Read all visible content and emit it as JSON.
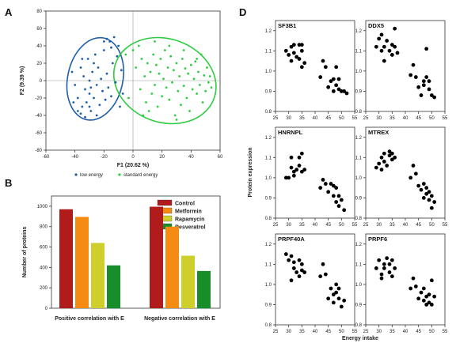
{
  "panels": {
    "a": "A",
    "b": "B",
    "d": "D"
  },
  "chart_data": [
    {
      "id": "A",
      "type": "scatter",
      "title": "",
      "xlabel": "F1 (20.62 %)",
      "ylabel": "F2 (9.39 %)",
      "xlim": [
        -60,
        60
      ],
      "ylim": [
        -80,
        80
      ],
      "xticks": [
        -60,
        -40,
        -20,
        0,
        20,
        40,
        60
      ],
      "yticks": [
        -80,
        -60,
        -40,
        -20,
        0,
        20,
        40,
        60,
        80
      ],
      "legend_position": "bottom",
      "series": [
        {
          "name": "low energy",
          "color": "#1f5fa8",
          "points": [
            [
              -42,
              10
            ],
            [
              -40,
              -5
            ],
            [
              -38,
              -20
            ],
            [
              -36,
              15
            ],
            [
              -35,
              -30
            ],
            [
              -34,
              5
            ],
            [
              -33,
              -10
            ],
            [
              -32,
              -25
            ],
            [
              -31,
              25
            ],
            [
              -30,
              -15
            ],
            [
              -30,
              0
            ],
            [
              -29,
              -35
            ],
            [
              -28,
              10
            ],
            [
              -27,
              -20
            ],
            [
              -26,
              30
            ],
            [
              -25,
              -5
            ],
            [
              -25,
              -40
            ],
            [
              -24,
              15
            ],
            [
              -23,
              -28
            ],
            [
              -22,
              2
            ],
            [
              -21,
              -12
            ],
            [
              -20,
              35
            ],
            [
              -19,
              -22
            ],
            [
              -18,
              8
            ],
            [
              -17,
              -8
            ],
            [
              -16,
              45
            ],
            [
              -15,
              -18
            ],
            [
              -14,
              20
            ],
            [
              -13,
              50
            ],
            [
              -12,
              -2
            ],
            [
              -11,
              28
            ],
            [
              -10,
              40
            ],
            [
              -9,
              -30
            ],
            [
              -8,
              12
            ],
            [
              -7,
              -15
            ],
            [
              -38,
              -35
            ],
            [
              -36,
              -38
            ],
            [
              -33,
              -42
            ],
            [
              -30,
              -30
            ],
            [
              -41,
              -25
            ],
            [
              -20,
              45
            ],
            [
              -18,
              48
            ],
            [
              -15,
              38
            ],
            [
              -27,
              20
            ],
            [
              -35,
              25
            ],
            [
              -29,
              -8
            ]
          ]
        },
        {
          "name": "standard energy",
          "color": "#2ecc40",
          "points": [
            [
              -5,
              30
            ],
            [
              0,
              35
            ],
            [
              2,
              15
            ],
            [
              4,
              40
            ],
            [
              5,
              -10
            ],
            [
              6,
              25
            ],
            [
              8,
              5
            ],
            [
              9,
              -25
            ],
            [
              10,
              20
            ],
            [
              11,
              -35
            ],
            [
              12,
              10
            ],
            [
              13,
              -15
            ],
            [
              14,
              30
            ],
            [
              15,
              -5
            ],
            [
              16,
              18
            ],
            [
              17,
              -30
            ],
            [
              18,
              8
            ],
            [
              19,
              25
            ],
            [
              20,
              -18
            ],
            [
              21,
              2
            ],
            [
              22,
              35
            ],
            [
              23,
              -8
            ],
            [
              24,
              15
            ],
            [
              25,
              -22
            ],
            [
              26,
              28
            ],
            [
              27,
              -2
            ],
            [
              28,
              12
            ],
            [
              29,
              -40
            ],
            [
              30,
              20
            ],
            [
              31,
              -12
            ],
            [
              32,
              5
            ],
            [
              33,
              -28
            ],
            [
              34,
              25
            ],
            [
              35,
              -6
            ],
            [
              36,
              14
            ],
            [
              37,
              -20
            ],
            [
              38,
              8
            ],
            [
              39,
              -35
            ],
            [
              40,
              18
            ],
            [
              41,
              -10
            ],
            [
              42,
              2
            ],
            [
              43,
              22
            ],
            [
              44,
              -15
            ],
            [
              45,
              10
            ],
            [
              46,
              -5
            ],
            [
              47,
              30
            ],
            [
              48,
              -25
            ],
            [
              49,
              6
            ],
            [
              50,
              -12
            ],
            [
              51,
              15
            ],
            [
              52,
              -2
            ],
            [
              53,
              5
            ],
            [
              54,
              -8
            ],
            [
              25,
              40
            ],
            [
              30,
              -45
            ],
            [
              15,
              45
            ],
            [
              -3,
              -20
            ],
            [
              7,
              -40
            ],
            [
              35,
              35
            ],
            [
              44,
              25
            ]
          ]
        }
      ]
    },
    {
      "id": "B",
      "type": "bar",
      "xlabel": "",
      "ylabel": "Number of proteins",
      "ylim": [
        0,
        1100
      ],
      "yticks": [
        0,
        200,
        400,
        600,
        800,
        1000
      ],
      "categories": [
        "Positive correlation with E",
        "Negative correlation with E"
      ],
      "legend_position": "top-right",
      "series": [
        {
          "name": "Control",
          "color": "#b01c1c",
          "values": [
            970,
            995
          ]
        },
        {
          "name": "Metformin",
          "color": "#f58b12",
          "values": [
            895,
            800
          ]
        },
        {
          "name": "Rapamycin",
          "color": "#cfcf2c",
          "values": [
            640,
            515
          ]
        },
        {
          "name": "Resveratrol",
          "color": "#178e2a",
          "values": [
            420,
            365
          ]
        }
      ]
    },
    {
      "id": "D",
      "type": "scatter",
      "xlabel": "Energy intake",
      "ylabel": "Protein expression",
      "xlim": [
        25,
        55
      ],
      "ylim": [
        0.8,
        1.25
      ],
      "xticks": [
        25,
        30,
        35,
        40,
        45,
        50,
        55
      ],
      "yticks": [
        0.8,
        0.9,
        1.0,
        1.1,
        1.2
      ],
      "subplots": [
        {
          "name": "SF3B1",
          "points": [
            [
              29,
              1.1
            ],
            [
              30,
              1.08
            ],
            [
              31,
              1.12
            ],
            [
              31,
              1.05
            ],
            [
              32,
              1.09
            ],
            [
              32,
              1.13
            ],
            [
              33,
              1.07
            ],
            [
              34,
              1.13
            ],
            [
              34,
              1.06
            ],
            [
              35,
              1.1
            ],
            [
              35,
              1.13
            ],
            [
              35,
              1.02
            ],
            [
              36,
              1.04
            ],
            [
              42,
              0.97
            ],
            [
              43,
              1.05
            ],
            [
              44,
              1.02
            ],
            [
              45,
              0.92
            ],
            [
              46,
              0.95
            ],
            [
              47,
              0.96
            ],
            [
              47,
              0.9
            ],
            [
              48,
              0.93
            ],
            [
              48,
              1.02
            ],
            [
              49,
              0.91
            ],
            [
              49,
              0.96
            ],
            [
              50,
              0.9
            ],
            [
              51,
              0.9
            ],
            [
              52,
              0.89
            ]
          ]
        },
        {
          "name": "DDX5",
          "points": [
            [
              29,
              1.12
            ],
            [
              30,
              1.16
            ],
            [
              31,
              1.1
            ],
            [
              31,
              1.18
            ],
            [
              32,
              1.12
            ],
            [
              32,
              1.05
            ],
            [
              33,
              1.15
            ],
            [
              34,
              1.1
            ],
            [
              35,
              1.13
            ],
            [
              35,
              1.08
            ],
            [
              36,
              1.21
            ],
            [
              36,
              1.12
            ],
            [
              37,
              1.09
            ],
            [
              42,
              0.98
            ],
            [
              43,
              1.03
            ],
            [
              44,
              0.97
            ],
            [
              45,
              0.92
            ],
            [
              46,
              0.88
            ],
            [
              47,
              0.95
            ],
            [
              47,
              0.93
            ],
            [
              48,
              1.11
            ],
            [
              48,
              0.97
            ],
            [
              49,
              0.91
            ],
            [
              49,
              0.95
            ],
            [
              50,
              0.88
            ],
            [
              51,
              0.87
            ]
          ]
        },
        {
          "name": "HNRNPL",
          "points": [
            [
              29,
              1.0
            ],
            [
              30,
              1.0
            ],
            [
              31,
              1.05
            ],
            [
              31,
              1.1
            ],
            [
              32,
              1.03
            ],
            [
              32,
              1.01
            ],
            [
              33,
              1.04
            ],
            [
              34,
              1.1
            ],
            [
              34,
              1.06
            ],
            [
              35,
              1.12
            ],
            [
              35,
              1.03
            ],
            [
              36,
              1.04
            ],
            [
              42,
              0.95
            ],
            [
              43,
              0.99
            ],
            [
              44,
              0.97
            ],
            [
              45,
              0.93
            ],
            [
              46,
              0.97
            ],
            [
              47,
              0.91
            ],
            [
              47,
              0.96
            ],
            [
              48,
              0.88
            ],
            [
              48,
              0.95
            ],
            [
              49,
              0.86
            ],
            [
              49,
              0.91
            ],
            [
              50,
              0.89
            ],
            [
              51,
              0.84
            ]
          ]
        },
        {
          "name": "MTREX",
          "points": [
            [
              29,
              1.05
            ],
            [
              30,
              1.07
            ],
            [
              31,
              1.04
            ],
            [
              31,
              1.1
            ],
            [
              32,
              1.08
            ],
            [
              32,
              1.12
            ],
            [
              33,
              1.06
            ],
            [
              34,
              1.11
            ],
            [
              34,
              1.13
            ],
            [
              35,
              1.09
            ],
            [
              35,
              1.12
            ],
            [
              36,
              1.1
            ],
            [
              42,
              1.0
            ],
            [
              43,
              1.06
            ],
            [
              44,
              1.02
            ],
            [
              45,
              0.96
            ],
            [
              46,
              0.94
            ],
            [
              47,
              0.9
            ],
            [
              47,
              0.97
            ],
            [
              48,
              0.92
            ],
            [
              48,
              0.95
            ],
            [
              49,
              0.89
            ],
            [
              49,
              0.93
            ],
            [
              50,
              0.91
            ],
            [
              51,
              0.88
            ],
            [
              50,
              0.85
            ]
          ]
        },
        {
          "name": "PRPF40A",
          "points": [
            [
              29,
              1.15
            ],
            [
              30,
              1.12
            ],
            [
              31,
              1.14
            ],
            [
              31,
              1.02
            ],
            [
              32,
              1.08
            ],
            [
              32,
              1.11
            ],
            [
              33,
              1.06
            ],
            [
              34,
              1.12
            ],
            [
              34,
              1.04
            ],
            [
              35,
              1.1
            ],
            [
              35,
              1.07
            ],
            [
              36,
              1.06
            ],
            [
              42,
              1.04
            ],
            [
              43,
              1.1
            ],
            [
              44,
              1.05
            ],
            [
              45,
              0.93
            ],
            [
              46,
              0.98
            ],
            [
              47,
              0.95
            ],
            [
              47,
              0.91
            ],
            [
              48,
              1.0
            ],
            [
              48,
              0.96
            ],
            [
              49,
              0.93
            ],
            [
              49,
              0.98
            ],
            [
              50,
              0.89
            ],
            [
              51,
              0.92
            ]
          ]
        },
        {
          "name": "PRPF6",
          "points": [
            [
              29,
              1.08
            ],
            [
              30,
              1.12
            ],
            [
              31,
              1.05
            ],
            [
              31,
              1.03
            ],
            [
              32,
              1.1
            ],
            [
              32,
              1.08
            ],
            [
              33,
              1.13
            ],
            [
              34,
              1.06
            ],
            [
              34,
              1.1
            ],
            [
              35,
              1.12
            ],
            [
              35,
              1.04
            ],
            [
              36,
              1.08
            ],
            [
              42,
              0.98
            ],
            [
              43,
              1.03
            ],
            [
              44,
              0.99
            ],
            [
              45,
              0.93
            ],
            [
              46,
              0.96
            ],
            [
              47,
              0.92
            ],
            [
              47,
              0.98
            ],
            [
              48,
              0.9
            ],
            [
              48,
              0.94
            ],
            [
              49,
              0.91
            ],
            [
              49,
              0.95
            ],
            [
              50,
              0.9
            ],
            [
              51,
              0.94
            ],
            [
              50,
              1.02
            ]
          ]
        }
      ]
    }
  ]
}
